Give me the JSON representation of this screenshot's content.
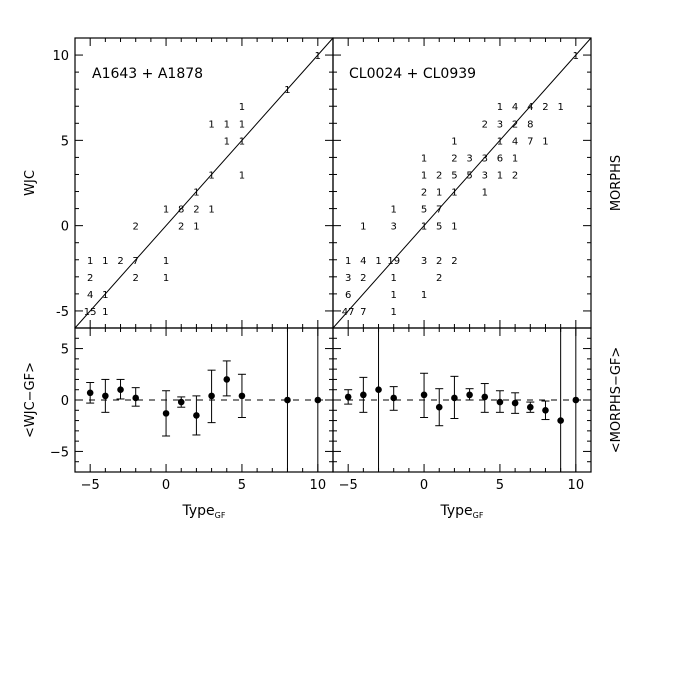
{
  "chart_data": [
    {
      "type": "table",
      "panel": "top-left",
      "title": "A1643 + A1878",
      "ylabel": "WJC",
      "xlim": [
        -6,
        11
      ],
      "ylim": [
        -6,
        11
      ],
      "xticks": [],
      "yticks": [
        "-5",
        "0",
        "5",
        "10"
      ],
      "cells": [
        {
          "x": 10,
          "y": 10,
          "v": "1"
        },
        {
          "x": 8,
          "y": 8,
          "v": "1"
        },
        {
          "x": 5,
          "y": 7,
          "v": "1"
        },
        {
          "x": 3,
          "y": 6,
          "v": "1"
        },
        {
          "x": 4,
          "y": 6,
          "v": "1"
        },
        {
          "x": 5,
          "y": 6,
          "v": "1"
        },
        {
          "x": 4,
          "y": 5,
          "v": "1"
        },
        {
          "x": 5,
          "y": 5,
          "v": "1"
        },
        {
          "x": 3,
          "y": 3,
          "v": "1"
        },
        {
          "x": 5,
          "y": 3,
          "v": "1"
        },
        {
          "x": 2,
          "y": 2,
          "v": "1"
        },
        {
          "x": 0,
          "y": 1,
          "v": "1"
        },
        {
          "x": 1,
          "y": 1,
          "v": "8"
        },
        {
          "x": 2,
          "y": 1,
          "v": "2"
        },
        {
          "x": 3,
          "y": 1,
          "v": "1"
        },
        {
          "x": -2,
          "y": 0,
          "v": "2"
        },
        {
          "x": 1,
          "y": 0,
          "v": "2"
        },
        {
          "x": 2,
          "y": 0,
          "v": "1"
        },
        {
          "x": -5,
          "y": -2,
          "v": "1"
        },
        {
          "x": -4,
          "y": -2,
          "v": "1"
        },
        {
          "x": -3,
          "y": -2,
          "v": "2"
        },
        {
          "x": -2,
          "y": -2,
          "v": "7"
        },
        {
          "x": 0,
          "y": -2,
          "v": "1"
        },
        {
          "x": -5,
          "y": -3,
          "v": "2"
        },
        {
          "x": -2,
          "y": -3,
          "v": "2"
        },
        {
          "x": 0,
          "y": -3,
          "v": "1"
        },
        {
          "x": -5,
          "y": -4,
          "v": "4"
        },
        {
          "x": -4,
          "y": -4,
          "v": "1"
        },
        {
          "x": -5,
          "y": -5,
          "v": "15"
        },
        {
          "x": -4,
          "y": -5,
          "v": "1"
        }
      ]
    },
    {
      "type": "table",
      "panel": "top-right",
      "title": "CL0024 + CL0939",
      "ylabel": "MORPHS",
      "xlim": [
        -6,
        11
      ],
      "ylim": [
        -6,
        11
      ],
      "cells": [
        {
          "x": 10,
          "y": 10,
          "v": "1"
        },
        {
          "x": 5,
          "y": 7,
          "v": "1"
        },
        {
          "x": 6,
          "y": 7,
          "v": "4"
        },
        {
          "x": 7,
          "y": 7,
          "v": "4"
        },
        {
          "x": 8,
          "y": 7,
          "v": "2"
        },
        {
          "x": 9,
          "y": 7,
          "v": "1"
        },
        {
          "x": 4,
          "y": 6,
          "v": "2"
        },
        {
          "x": 5,
          "y": 6,
          "v": "3"
        },
        {
          "x": 6,
          "y": 6,
          "v": "2"
        },
        {
          "x": 7,
          "y": 6,
          "v": "8"
        },
        {
          "x": 5,
          "y": 5,
          "v": "1"
        },
        {
          "x": 6,
          "y": 5,
          "v": "4"
        },
        {
          "x": 7,
          "y": 5,
          "v": "7"
        },
        {
          "x": 8,
          "y": 5,
          "v": "1"
        },
        {
          "x": 2,
          "y": 5,
          "v": "1"
        },
        {
          "x": 0,
          "y": 4,
          "v": "1"
        },
        {
          "x": 2,
          "y": 4,
          "v": "2"
        },
        {
          "x": 3,
          "y": 4,
          "v": "3"
        },
        {
          "x": 4,
          "y": 4,
          "v": "3"
        },
        {
          "x": 5,
          "y": 4,
          "v": "6"
        },
        {
          "x": 6,
          "y": 4,
          "v": "1"
        },
        {
          "x": 0,
          "y": 3,
          "v": "1"
        },
        {
          "x": 1,
          "y": 3,
          "v": "2"
        },
        {
          "x": 2,
          "y": 3,
          "v": "5"
        },
        {
          "x": 3,
          "y": 3,
          "v": "5"
        },
        {
          "x": 4,
          "y": 3,
          "v": "3"
        },
        {
          "x": 5,
          "y": 3,
          "v": "1"
        },
        {
          "x": 6,
          "y": 3,
          "v": "2"
        },
        {
          "x": 0,
          "y": 2,
          "v": "2"
        },
        {
          "x": 1,
          "y": 2,
          "v": "1"
        },
        {
          "x": 2,
          "y": 2,
          "v": "1"
        },
        {
          "x": 4,
          "y": 2,
          "v": "1"
        },
        {
          "x": -2,
          "y": 1,
          "v": "1"
        },
        {
          "x": 0,
          "y": 1,
          "v": "5"
        },
        {
          "x": 1,
          "y": 1,
          "v": "7"
        },
        {
          "x": -4,
          "y": 0,
          "v": "1"
        },
        {
          "x": -2,
          "y": 0,
          "v": "3"
        },
        {
          "x": 0,
          "y": 0,
          "v": "1"
        },
        {
          "x": 1,
          "y": 0,
          "v": "5"
        },
        {
          "x": 2,
          "y": 0,
          "v": "1"
        },
        {
          "x": -5,
          "y": -2,
          "v": "1"
        },
        {
          "x": -4,
          "y": -2,
          "v": "4"
        },
        {
          "x": -3,
          "y": -2,
          "v": "1"
        },
        {
          "x": -2,
          "y": -2,
          "v": "19"
        },
        {
          "x": 0,
          "y": -2,
          "v": "3"
        },
        {
          "x": 1,
          "y": -2,
          "v": "2"
        },
        {
          "x": 2,
          "y": -2,
          "v": "2"
        },
        {
          "x": -5,
          "y": -3,
          "v": "3"
        },
        {
          "x": -4,
          "y": -3,
          "v": "2"
        },
        {
          "x": -2,
          "y": -3,
          "v": "1"
        },
        {
          "x": 1,
          "y": -3,
          "v": "2"
        },
        {
          "x": -5,
          "y": -4,
          "v": "6"
        },
        {
          "x": -2,
          "y": -4,
          "v": "1"
        },
        {
          "x": 0,
          "y": -4,
          "v": "1"
        },
        {
          "x": -5,
          "y": -5,
          "v": "47"
        },
        {
          "x": -4,
          "y": -5,
          "v": "7"
        },
        {
          "x": -2,
          "y": -5,
          "v": "1"
        }
      ]
    },
    {
      "type": "scatter",
      "panel": "bottom-left",
      "ylabel": "<WJC−GF>",
      "xlabel": "Type",
      "xlabel_sub": "GF",
      "xlim": [
        -6,
        11
      ],
      "ylim": [
        -7,
        7
      ],
      "xticks": [
        "−5",
        "0",
        "5",
        "10"
      ],
      "yticks": [
        "−5",
        "0",
        "5"
      ],
      "points": [
        {
          "x": -5,
          "y": 0.7,
          "lo": -0.3,
          "hi": 1.7
        },
        {
          "x": -4,
          "y": 0.4,
          "lo": -1.2,
          "hi": 2.0
        },
        {
          "x": -3,
          "y": 1.0,
          "lo": 0.1,
          "hi": 2.0
        },
        {
          "x": -2,
          "y": 0.2,
          "lo": -0.6,
          "hi": 1.2
        },
        {
          "x": 0,
          "y": -1.3,
          "lo": -3.5,
          "hi": 0.9
        },
        {
          "x": 1,
          "y": -0.2,
          "lo": -0.7,
          "hi": 0.3
        },
        {
          "x": 2,
          "y": -1.5,
          "lo": -3.4,
          "hi": 0.4
        },
        {
          "x": 3,
          "y": 0.4,
          "lo": -2.2,
          "hi": 2.9
        },
        {
          "x": 4,
          "y": 2.0,
          "lo": 0.4,
          "hi": 3.8
        },
        {
          "x": 5,
          "y": 0.4,
          "lo": -1.7,
          "hi": 2.5
        },
        {
          "x": 8,
          "y": 0.0,
          "lo": -7,
          "hi": 7
        },
        {
          "x": 10,
          "y": 0.0,
          "lo": -7,
          "hi": 7
        }
      ]
    },
    {
      "type": "scatter",
      "panel": "bottom-right",
      "ylabel": "<MORPHS−GF>",
      "xlabel": "Type",
      "xlabel_sub": "GF",
      "xlim": [
        -6,
        11
      ],
      "ylim": [
        -7,
        7
      ],
      "xticks": [
        "−5",
        "0",
        "5",
        "10"
      ],
      "points": [
        {
          "x": -5,
          "y": 0.3,
          "lo": -0.4,
          "hi": 1.0
        },
        {
          "x": -4,
          "y": 0.5,
          "lo": -1.2,
          "hi": 2.2
        },
        {
          "x": -3,
          "y": 1.0,
          "lo": -7,
          "hi": 7
        },
        {
          "x": -2,
          "y": 0.2,
          "lo": -1.0,
          "hi": 1.3
        },
        {
          "x": 0,
          "y": 0.5,
          "lo": -1.7,
          "hi": 2.6
        },
        {
          "x": 1,
          "y": -0.7,
          "lo": -2.5,
          "hi": 1.1
        },
        {
          "x": 2,
          "y": 0.2,
          "lo": -1.8,
          "hi": 2.3
        },
        {
          "x": 3,
          "y": 0.5,
          "lo": 0.0,
          "hi": 1.1
        },
        {
          "x": 4,
          "y": 0.3,
          "lo": -1.2,
          "hi": 1.6
        },
        {
          "x": 5,
          "y": -0.2,
          "lo": -1.2,
          "hi": 0.9
        },
        {
          "x": 6,
          "y": -0.3,
          "lo": -1.3,
          "hi": 0.7
        },
        {
          "x": 7,
          "y": -0.7,
          "lo": -1.2,
          "hi": -0.2
        },
        {
          "x": 8,
          "y": -1.0,
          "lo": -1.9,
          "hi": -0.1
        },
        {
          "x": 9,
          "y": -2.0,
          "lo": -7,
          "hi": 7
        },
        {
          "x": 10,
          "y": 0.0,
          "lo": -7,
          "hi": 7
        }
      ]
    }
  ]
}
